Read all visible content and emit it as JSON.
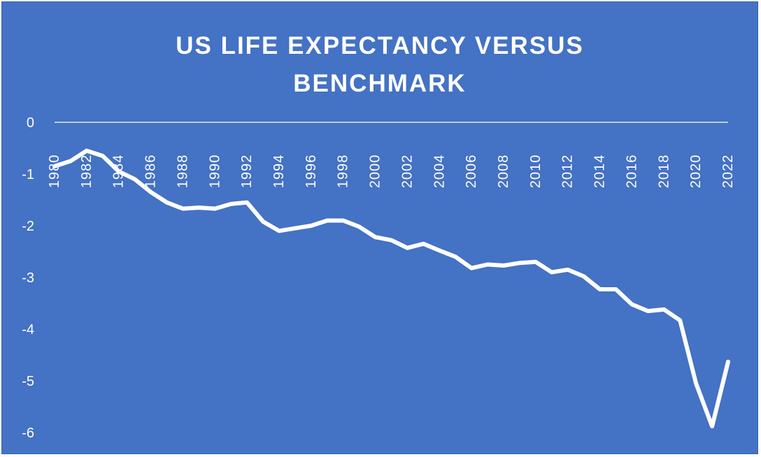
{
  "chart_data": {
    "type": "line",
    "title_lines": [
      "US LIFE EXPECTANCY VERSUS",
      "BENCHMARK"
    ],
    "xlabel": "",
    "ylabel": "",
    "ylim": [
      -6,
      0
    ],
    "yticks": [
      0,
      -1,
      -2,
      -3,
      -4,
      -5,
      -6
    ],
    "xticks": [
      1980,
      1982,
      1984,
      1986,
      1988,
      1990,
      1992,
      1994,
      1996,
      1998,
      2000,
      2002,
      2004,
      2006,
      2008,
      2010,
      2012,
      2014,
      2016,
      2018,
      2020,
      2022
    ],
    "grid": false,
    "legend": "none",
    "x": [
      1980,
      1981,
      1982,
      1983,
      1984,
      1985,
      1986,
      1987,
      1988,
      1989,
      1990,
      1991,
      1992,
      1993,
      1994,
      1995,
      1996,
      1997,
      1998,
      1999,
      2000,
      2001,
      2002,
      2003,
      2004,
      2005,
      2006,
      2007,
      2008,
      2009,
      2010,
      2011,
      2012,
      2013,
      2014,
      2015,
      2016,
      2017,
      2018,
      2019,
      2020,
      2021,
      2022
    ],
    "series": [
      {
        "values": [
          -0.85,
          -0.75,
          -0.55,
          -0.65,
          -0.95,
          -1.1,
          -1.35,
          -1.55,
          -1.67,
          -1.65,
          -1.67,
          -1.58,
          -1.55,
          -1.92,
          -2.1,
          -2.05,
          -2.0,
          -1.9,
          -1.9,
          -2.02,
          -2.22,
          -2.28,
          -2.43,
          -2.35,
          -2.48,
          -2.6,
          -2.82,
          -2.75,
          -2.77,
          -2.72,
          -2.7,
          -2.9,
          -2.85,
          -2.98,
          -3.23,
          -3.23,
          -3.52,
          -3.65,
          -3.62,
          -3.83,
          -5.05,
          -5.88,
          -4.63
        ]
      }
    ],
    "colors": {
      "background": "#4472c4",
      "line": "#ffffff",
      "text": "#ffffff",
      "drop_lines": "#ffffff"
    }
  }
}
